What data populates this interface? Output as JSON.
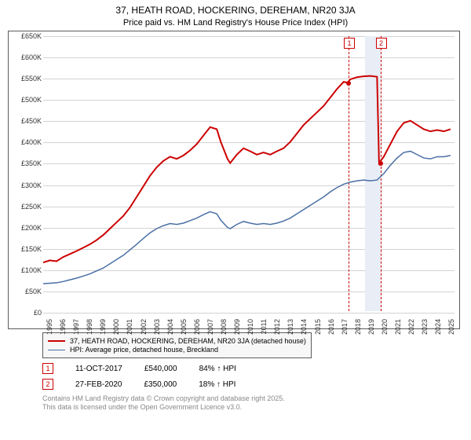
{
  "title": "37, HEATH ROAD, HOCKERING, DEREHAM, NR20 3JA",
  "subtitle": "Price paid vs. HM Land Registry's House Price Index (HPI)",
  "chart": {
    "type": "line",
    "background_color": "#ffffff",
    "grid_color": "#d3d3d3",
    "border_color": "#5b5b5b",
    "x_years": [
      1995,
      1996,
      1997,
      1998,
      1999,
      2000,
      2001,
      2002,
      2003,
      2004,
      2005,
      2006,
      2007,
      2008,
      2009,
      2010,
      2011,
      2012,
      2013,
      2014,
      2015,
      2016,
      2017,
      2018,
      2019,
      2020,
      2021,
      2022,
      2023,
      2024,
      2025
    ],
    "xlim": [
      1995,
      2025.8
    ],
    "ylim": [
      0,
      650000
    ],
    "ytick_step": 50000,
    "ytick_labels": [
      "£0",
      "£50K",
      "£100K",
      "£150K",
      "£200K",
      "£250K",
      "£300K",
      "£350K",
      "£400K",
      "£450K",
      "£500K",
      "£550K",
      "£600K",
      "£650K"
    ],
    "label_fontsize": 9,
    "shaded_band": {
      "start": 2019.0,
      "end": 2020.2,
      "color": "#e8edf6"
    },
    "series": [
      {
        "name": "property",
        "color": "#cc0000",
        "line_width": 2,
        "points": [
          [
            1995,
            115000
          ],
          [
            1995.5,
            120000
          ],
          [
            1996,
            118000
          ],
          [
            1996.5,
            128000
          ],
          [
            1997,
            135000
          ],
          [
            1997.5,
            142000
          ],
          [
            1998,
            150000
          ],
          [
            1998.5,
            158000
          ],
          [
            1999,
            168000
          ],
          [
            1999.5,
            180000
          ],
          [
            2000,
            195000
          ],
          [
            2000.5,
            210000
          ],
          [
            2001,
            225000
          ],
          [
            2001.5,
            245000
          ],
          [
            2002,
            270000
          ],
          [
            2002.5,
            295000
          ],
          [
            2003,
            320000
          ],
          [
            2003.5,
            340000
          ],
          [
            2004,
            355000
          ],
          [
            2004.5,
            365000
          ],
          [
            2005,
            360000
          ],
          [
            2005.5,
            368000
          ],
          [
            2006,
            380000
          ],
          [
            2006.5,
            395000
          ],
          [
            2007,
            415000
          ],
          [
            2007.5,
            435000
          ],
          [
            2008,
            430000
          ],
          [
            2008.3,
            400000
          ],
          [
            2008.8,
            360000
          ],
          [
            2009,
            350000
          ],
          [
            2009.5,
            370000
          ],
          [
            2010,
            385000
          ],
          [
            2010.5,
            378000
          ],
          [
            2011,
            370000
          ],
          [
            2011.5,
            375000
          ],
          [
            2012,
            370000
          ],
          [
            2012.5,
            378000
          ],
          [
            2013,
            385000
          ],
          [
            2013.5,
            400000
          ],
          [
            2014,
            420000
          ],
          [
            2014.5,
            440000
          ],
          [
            2015,
            455000
          ],
          [
            2015.5,
            470000
          ],
          [
            2016,
            485000
          ],
          [
            2016.5,
            505000
          ],
          [
            2017,
            525000
          ],
          [
            2017.5,
            542000
          ],
          [
            2017.78,
            540000
          ],
          [
            2018,
            548000
          ],
          [
            2018.5,
            553000
          ],
          [
            2019,
            555000
          ],
          [
            2019.5,
            556000
          ],
          [
            2020,
            554000
          ],
          [
            2020.15,
            350000
          ],
          [
            2020.5,
            365000
          ],
          [
            2021,
            395000
          ],
          [
            2021.5,
            425000
          ],
          [
            2022,
            445000
          ],
          [
            2022.5,
            450000
          ],
          [
            2023,
            440000
          ],
          [
            2023.5,
            430000
          ],
          [
            2024,
            425000
          ],
          [
            2024.5,
            428000
          ],
          [
            2025,
            425000
          ],
          [
            2025.5,
            430000
          ]
        ]
      },
      {
        "name": "hpi",
        "color": "#4a6fa5",
        "line_width": 1.5,
        "points": [
          [
            1995,
            65000
          ],
          [
            1995.5,
            66000
          ],
          [
            1996,
            67000
          ],
          [
            1996.5,
            70000
          ],
          [
            1997,
            74000
          ],
          [
            1997.5,
            78000
          ],
          [
            1998,
            83000
          ],
          [
            1998.5,
            88000
          ],
          [
            1999,
            95000
          ],
          [
            1999.5,
            102000
          ],
          [
            2000,
            112000
          ],
          [
            2000.5,
            122000
          ],
          [
            2001,
            132000
          ],
          [
            2001.5,
            145000
          ],
          [
            2002,
            158000
          ],
          [
            2002.5,
            172000
          ],
          [
            2003,
            185000
          ],
          [
            2003.5,
            195000
          ],
          [
            2004,
            202000
          ],
          [
            2004.5,
            207000
          ],
          [
            2005,
            205000
          ],
          [
            2005.5,
            208000
          ],
          [
            2006,
            214000
          ],
          [
            2006.5,
            220000
          ],
          [
            2007,
            228000
          ],
          [
            2007.5,
            235000
          ],
          [
            2008,
            230000
          ],
          [
            2008.3,
            215000
          ],
          [
            2008.8,
            198000
          ],
          [
            2009,
            195000
          ],
          [
            2009.5,
            205000
          ],
          [
            2010,
            212000
          ],
          [
            2010.5,
            208000
          ],
          [
            2011,
            205000
          ],
          [
            2011.5,
            207000
          ],
          [
            2012,
            205000
          ],
          [
            2012.5,
            208000
          ],
          [
            2013,
            213000
          ],
          [
            2013.5,
            220000
          ],
          [
            2014,
            230000
          ],
          [
            2014.5,
            240000
          ],
          [
            2015,
            250000
          ],
          [
            2015.5,
            260000
          ],
          [
            2016,
            270000
          ],
          [
            2016.5,
            282000
          ],
          [
            2017,
            292000
          ],
          [
            2017.5,
            300000
          ],
          [
            2018,
            305000
          ],
          [
            2018.5,
            308000
          ],
          [
            2019,
            310000
          ],
          [
            2019.5,
            308000
          ],
          [
            2020,
            310000
          ],
          [
            2020.5,
            325000
          ],
          [
            2021,
            345000
          ],
          [
            2021.5,
            362000
          ],
          [
            2022,
            375000
          ],
          [
            2022.5,
            378000
          ],
          [
            2023,
            370000
          ],
          [
            2023.5,
            362000
          ],
          [
            2024,
            360000
          ],
          [
            2024.5,
            365000
          ],
          [
            2025,
            365000
          ],
          [
            2025.5,
            368000
          ]
        ]
      }
    ],
    "sale_markers": [
      {
        "label": "1",
        "x": 2017.78,
        "y": 540000,
        "color": "#cc0000"
      },
      {
        "label": "2",
        "x": 2020.15,
        "y": 350000,
        "color": "#cc0000"
      }
    ]
  },
  "legend": {
    "items": [
      {
        "label": "37, HEATH ROAD, HOCKERING, DEREHAM, NR20 3JA (detached house)",
        "color": "#cc0000",
        "line_width": 2
      },
      {
        "label": "HPI: Average price, detached house, Breckland",
        "color": "#4a6fa5",
        "line_width": 1.5
      }
    ]
  },
  "sales": [
    {
      "marker": "1",
      "marker_color": "#cc0000",
      "date": "11-OCT-2017",
      "price": "£540,000",
      "delta": "84% ↑ HPI"
    },
    {
      "marker": "2",
      "marker_color": "#cc0000",
      "date": "27-FEB-2020",
      "price": "£350,000",
      "delta": "18% ↑ HPI"
    }
  ],
  "attribution": {
    "line1": "Contains HM Land Registry data © Crown copyright and database right 2025.",
    "line2": "This data is licensed under the Open Government Licence v3.0."
  }
}
